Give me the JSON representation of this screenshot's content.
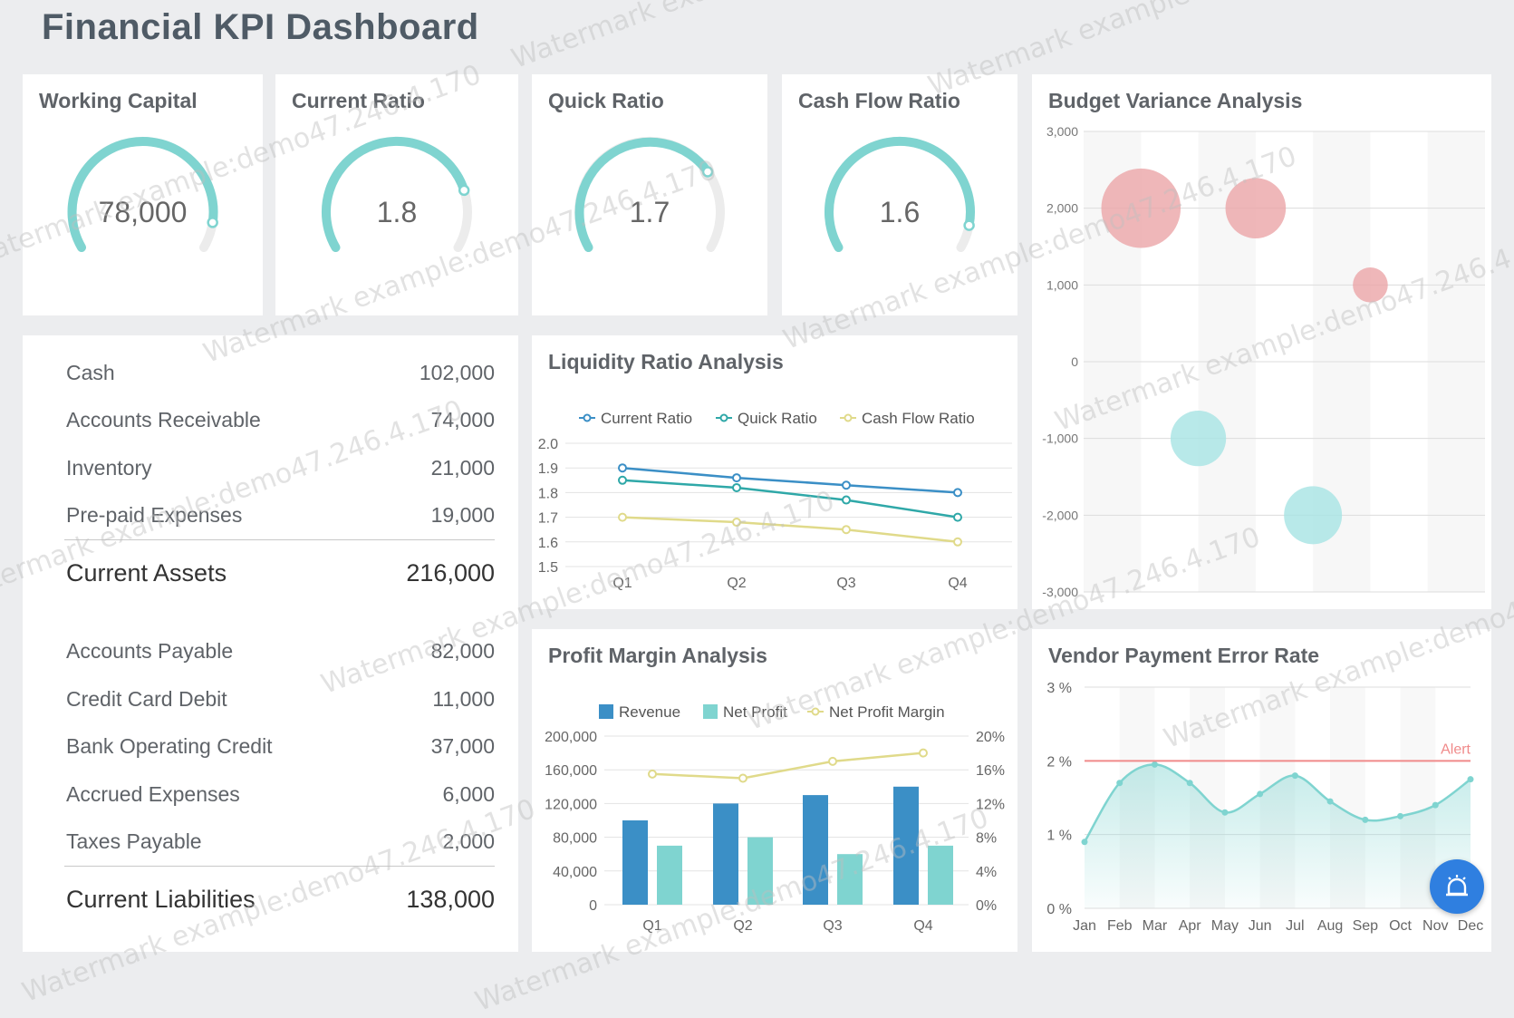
{
  "page_title": "Financial KPI Dashboard",
  "watermark_text": "Watermark example:demo47.246.4.170",
  "gauges": [
    {
      "title": "Working Capital",
      "display": "78,000",
      "fraction": 0.91
    },
    {
      "title": "Current Ratio",
      "display": "1.8",
      "fraction": 0.8
    },
    {
      "title": "Quick Ratio",
      "display": "1.7",
      "fraction": 0.73
    },
    {
      "title": "Cash Flow Ratio",
      "display": "1.6",
      "fraction": 0.92
    }
  ],
  "balance_sheet": {
    "assets": [
      {
        "label": "Cash",
        "value": "102,000"
      },
      {
        "label": "Accounts Receivable",
        "value": "74,000"
      },
      {
        "label": "Inventory",
        "value": "21,000"
      },
      {
        "label": "Pre-paid Expenses",
        "value": "19,000"
      }
    ],
    "assets_total": {
      "label": "Current Assets",
      "value": "216,000"
    },
    "liabilities": [
      {
        "label": "Accounts Payable",
        "value": "82,000"
      },
      {
        "label": "Credit Card Debit",
        "value": "11,000"
      },
      {
        "label": "Bank Operating Credit",
        "value": "37,000"
      },
      {
        "label": "Accrued Expenses",
        "value": "6,000"
      },
      {
        "label": "Taxes Payable",
        "value": "2,000"
      }
    ],
    "liabilities_total": {
      "label": "Current Liabilities",
      "value": "138,000"
    }
  },
  "colors": {
    "teal": "#7fd4d0",
    "gauge_track": "#ececec",
    "blue": "#3b8fc6",
    "dark_teal": "#2fa8a8",
    "yellow": "#e0da8a",
    "bubble_red": "#eba5a8",
    "bubble_teal": "#a6e4e3",
    "alert_red": "#f08a8a",
    "fab_blue": "#2f7fe0"
  },
  "chart_data": [
    {
      "type": "line",
      "title": "Liquidity Ratio Analysis",
      "categories": [
        "Q1",
        "Q2",
        "Q3",
        "Q4"
      ],
      "ylim": [
        1.5,
        2.0
      ],
      "yticks": [
        "1.5",
        "1.6",
        "1.7",
        "1.8",
        "1.9",
        "2.0"
      ],
      "legend_position": "top",
      "series": [
        {
          "name": "Current Ratio",
          "values": [
            1.9,
            1.86,
            1.83,
            1.8
          ]
        },
        {
          "name": "Quick Ratio",
          "values": [
            1.85,
            1.82,
            1.77,
            1.7
          ]
        },
        {
          "name": "Cash Flow Ratio",
          "values": [
            1.7,
            1.68,
            1.65,
            1.6
          ]
        }
      ]
    },
    {
      "type": "bar",
      "title": "Profit Margin Analysis",
      "categories": [
        "Q1",
        "Q2",
        "Q3",
        "Q4"
      ],
      "ylim": [
        0,
        200000
      ],
      "yticks": [
        "0",
        "40,000",
        "80,000",
        "120,000",
        "160,000",
        "200,000"
      ],
      "y2lim": [
        0,
        20
      ],
      "y2ticks": [
        "0%",
        "4%",
        "8%",
        "12%",
        "16%",
        "20%"
      ],
      "legend_position": "top",
      "series": [
        {
          "name": "Revenue",
          "kind": "bar",
          "values": [
            100000,
            120000,
            130000,
            140000
          ]
        },
        {
          "name": "Net Profit",
          "kind": "bar",
          "values": [
            70000,
            80000,
            60000,
            70000
          ]
        },
        {
          "name": "Net Profit Margin",
          "kind": "line",
          "axis": "right",
          "values": [
            15.5,
            15,
            17,
            18
          ]
        }
      ]
    },
    {
      "type": "scatter",
      "title": "Budget Variance Analysis",
      "ylim": [
        -3000,
        3000
      ],
      "yticks": [
        "3,000",
        "2,000",
        "1,000",
        "0",
        "-1,000",
        "-2,000",
        "-3,000"
      ],
      "x": [
        2,
        3,
        4,
        5,
        6
      ],
      "points": [
        {
          "x": 2,
          "y": 2000,
          "magnitude": 2000
        },
        {
          "x": 3,
          "y": -1000,
          "magnitude": 800
        },
        {
          "x": 4,
          "y": 2000,
          "magnitude": 1000
        },
        {
          "x": 5,
          "y": -2000,
          "magnitude": 900
        },
        {
          "x": 6,
          "y": 1000,
          "magnitude": 200
        }
      ]
    },
    {
      "type": "area",
      "title": "Vendor Payment Error Rate",
      "categories": [
        "Jan",
        "Feb",
        "Mar",
        "Apr",
        "May",
        "Jun",
        "Jul",
        "Aug",
        "Sep",
        "Oct",
        "Nov",
        "Dec"
      ],
      "ylim": [
        0,
        3
      ],
      "yticks": [
        "0 %",
        "1 %",
        "2 %",
        "3 %"
      ],
      "values": [
        0.9,
        1.7,
        1.95,
        1.7,
        1.3,
        1.55,
        1.8,
        1.45,
        1.2,
        1.25,
        1.4,
        1.75
      ],
      "threshold": {
        "label": "Alert",
        "value": 2
      }
    }
  ]
}
